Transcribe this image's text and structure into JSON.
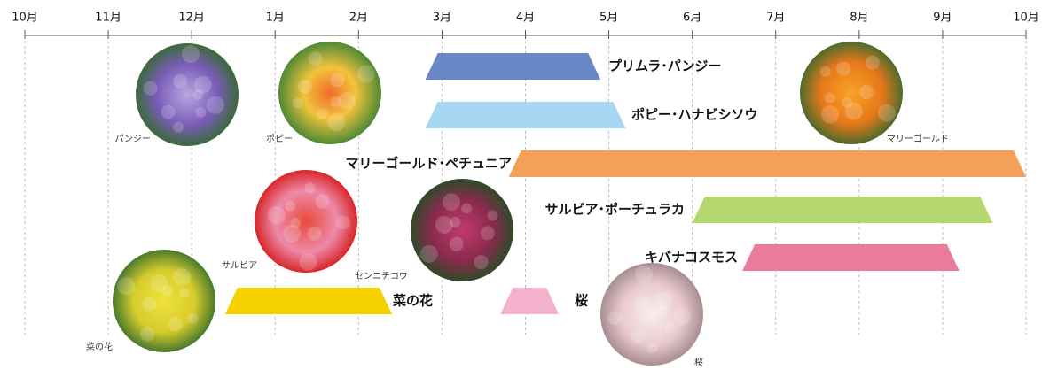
{
  "chart_data": {
    "type": "timeline",
    "xlim": [
      0,
      12
    ],
    "xticks": [
      {
        "value": 0,
        "label": "10月"
      },
      {
        "value": 1,
        "label": "11月"
      },
      {
        "value": 2,
        "label": "12月"
      },
      {
        "value": 3,
        "label": "1月"
      },
      {
        "value": 4,
        "label": "2月"
      },
      {
        "value": 5,
        "label": "3月"
      },
      {
        "value": 6,
        "label": "4月"
      },
      {
        "value": 7,
        "label": "5月"
      },
      {
        "value": 8,
        "label": "6月"
      },
      {
        "value": 9,
        "label": "7月"
      },
      {
        "value": 10,
        "label": "8月"
      },
      {
        "value": 11,
        "label": "9月"
      },
      {
        "value": 12,
        "label": "10月"
      }
    ],
    "grid": true,
    "bars": [
      {
        "name": "プリムラ･パンジー",
        "color": "#6a87c6",
        "start": 4.8,
        "end": 6.9
      },
      {
        "name": "ポピー･ハナビシソウ",
        "color": "#a6d8f2",
        "start": 4.8,
        "end": 7.2
      },
      {
        "name": "マリーゴールド･ペチュニア",
        "color": "#f4a05a",
        "start": 5.8,
        "end": 12.0
      },
      {
        "name": "サルビア･ポーチュラカ",
        "color": "#b5d86e",
        "start": 8.0,
        "end": 11.6
      },
      {
        "name": "キバナコスモス",
        "color": "#ea7b9b",
        "start": 8.6,
        "end": 11.2
      },
      {
        "name": "菜の花",
        "color": "#f6d100",
        "start": 2.4,
        "end": 4.4
      },
      {
        "name": "桜",
        "color": "#f3b1cc",
        "start": 5.7,
        "end": 6.4
      }
    ],
    "photos": [
      "パンジー",
      "ポピー",
      "マリーゴールド",
      "サルビア",
      "センニチコウ",
      "菜の花",
      "桜"
    ]
  }
}
